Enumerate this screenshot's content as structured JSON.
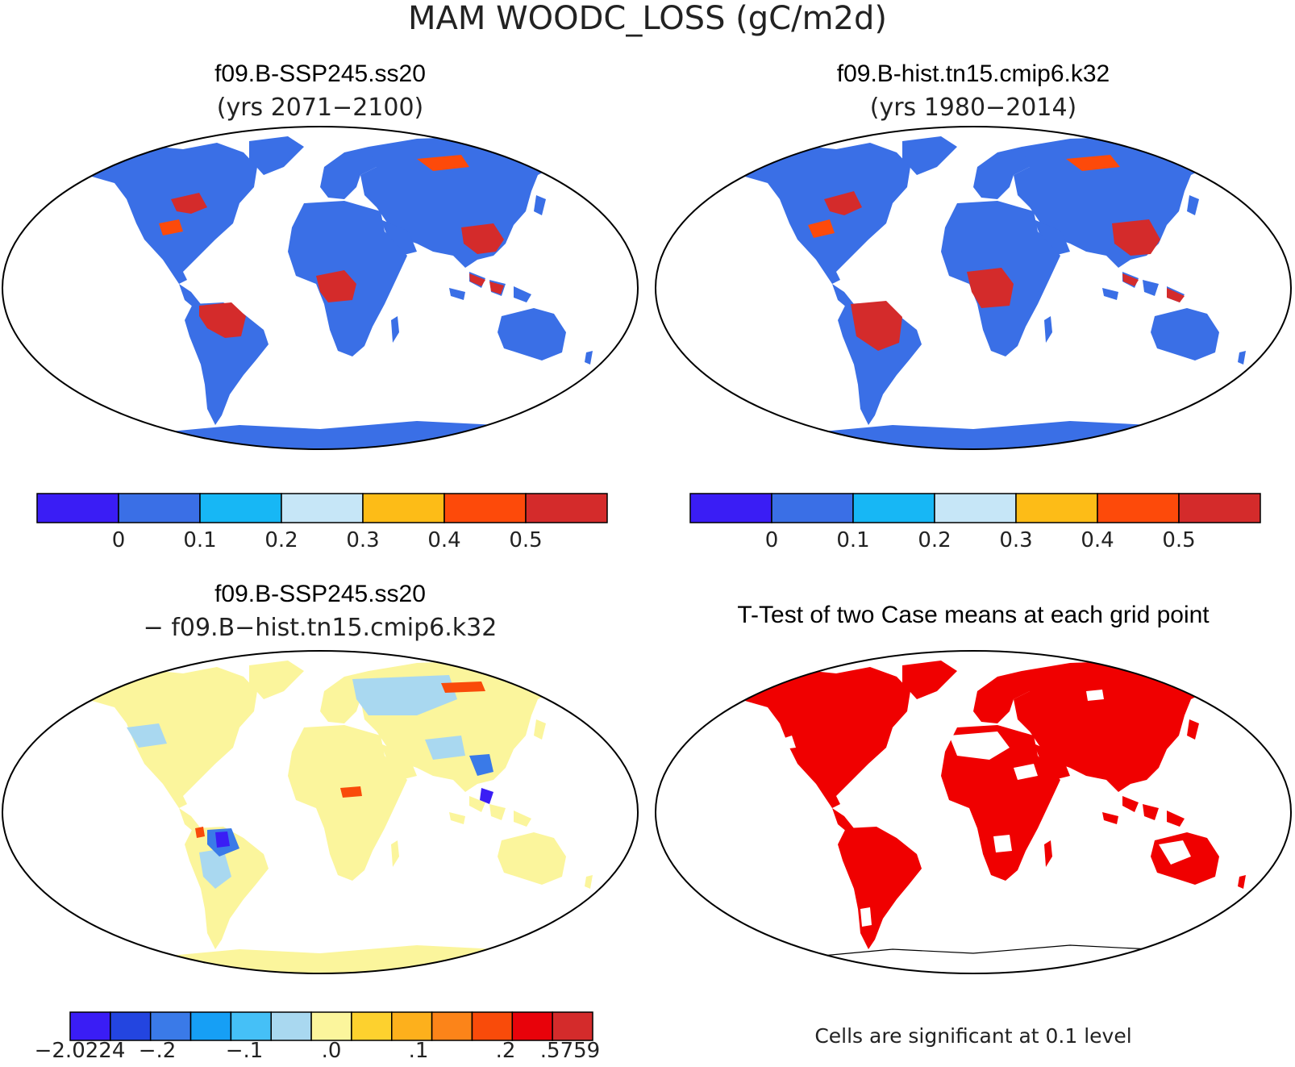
{
  "figure": {
    "title": "MAM WOODC_LOSS (gC/m2d)",
    "note": "Cells are significant at 0.1 level"
  },
  "panels": {
    "future": {
      "title": "f09.B-SSP245.ss20",
      "subtitle": "(yrs 2071−2100)"
    },
    "historical": {
      "title": "f09.B-hist.tn15.cmip6.k32",
      "subtitle": "(yrs 1980−2014)"
    },
    "difference": {
      "title": "f09.B-SSP245.ss20",
      "subtitle": "− f09.B−hist.tn15.cmip6.k32"
    },
    "ttest": {
      "title": "T-Test of two Case means at each grid point"
    }
  },
  "colorbars": {
    "main": {
      "colors": [
        "#3a1df5",
        "#3a6fe6",
        "#17b7f5",
        "#c6e6f7",
        "#fdbc17",
        "#fd4a0a",
        "#d42b2b"
      ],
      "labels": [
        "0",
        "0.1",
        "0.2",
        "0.3",
        "0.4",
        "0.5"
      ]
    },
    "diff": {
      "colors": [
        "#3a1df5",
        "#2345e0",
        "#3a7ae8",
        "#169ff5",
        "#45c0f7",
        "#a9d8f0",
        "#fbf59c",
        "#fdd12e",
        "#fdb01c",
        "#fc8419",
        "#f94b0a",
        "#e8020a",
        "#d42b2b"
      ],
      "labels": [
        "−2.0224",
        "−.2",
        "−.1",
        ".0",
        ".1",
        ".2",
        ".5759"
      ]
    }
  },
  "colors": {
    "land_base": "#3a6fe6",
    "tropics_high": "#d42b2b",
    "diff_base": "#fbf59c",
    "significant": "#f00000"
  }
}
